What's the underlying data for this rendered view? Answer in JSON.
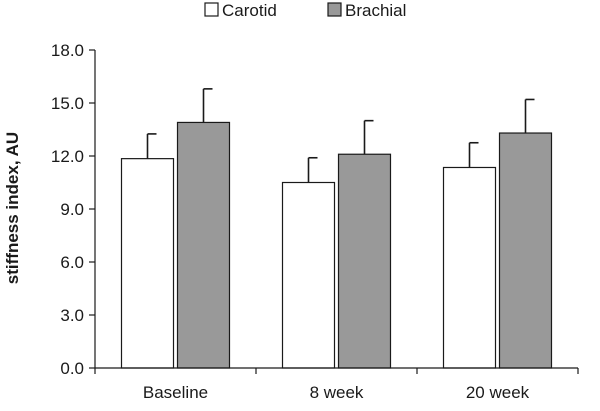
{
  "chart_data": {
    "type": "bar",
    "categories": [
      "Baseline",
      "8 week",
      "20 week"
    ],
    "series": [
      {
        "name": "Carotid",
        "values": [
          11.85,
          10.5,
          11.35
        ],
        "error": [
          1.4,
          1.4,
          1.4
        ],
        "color": "#ffffff"
      },
      {
        "name": "Brachial",
        "values": [
          13.9,
          12.1,
          13.3
        ],
        "error": [
          1.9,
          1.9,
          1.9
        ],
        "color": "#999999"
      }
    ],
    "ylabel": "stiffness index, AU",
    "xlabel": "",
    "ylim": [
      0,
      18
    ],
    "yticks": [
      "0.0",
      "3.0",
      "6.0",
      "9.0",
      "12.0",
      "15.0",
      "18.0"
    ],
    "legend_position": "top",
    "grid": false
  }
}
